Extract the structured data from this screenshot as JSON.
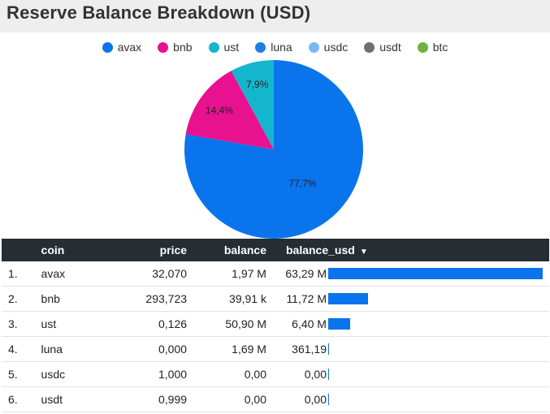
{
  "header": {
    "title": "Reserve Balance Breakdown (USD)"
  },
  "colors": {
    "avax": "#0a74ec",
    "bnb": "#e8118f",
    "ust": "#13b6cc",
    "luna": "#1d7fe0",
    "usdc": "#7cb7f5",
    "usdt": "#6f6f6f",
    "btc": "#6db33f",
    "bar": "#0a74ec",
    "header_bg": "#262d33"
  },
  "legend": [
    "avax",
    "bnb",
    "ust",
    "luna",
    "usdc",
    "usdt",
    "btc"
  ],
  "chart_data": [
    {
      "type": "pie",
      "title": "Reserve Balance Breakdown (USD)",
      "categories": [
        "avax",
        "bnb",
        "ust",
        "luna",
        "usdc",
        "usdt",
        "btc"
      ],
      "values": [
        77.7,
        14.4,
        7.9,
        0.0,
        0.0,
        0.0,
        0.0
      ],
      "labels": [
        "77,7%",
        "14,4%",
        "7,9%",
        "",
        "",
        "",
        ""
      ],
      "legend_position": "top-center"
    },
    {
      "type": "table",
      "columns": [
        "coin",
        "price",
        "balance",
        "balance_usd"
      ],
      "sort_indicator": "▼",
      "rows": [
        {
          "idx": "1.",
          "coin": "avax",
          "price": "32,070",
          "balance": "1,97 M",
          "balance_usd": "63,29 M",
          "usd_value": 63290000
        },
        {
          "idx": "2.",
          "coin": "bnb",
          "price": "293,723",
          "balance": "39,91 k",
          "balance_usd": "11,72 M",
          "usd_value": 11720000
        },
        {
          "idx": "3.",
          "coin": "ust",
          "price": "0,126",
          "balance": "50,90 M",
          "balance_usd": "6,40 M",
          "usd_value": 6400000
        },
        {
          "idx": "4.",
          "coin": "luna",
          "price": "0,000",
          "balance": "1,69 M",
          "balance_usd": "361,19",
          "usd_value": 361.19
        },
        {
          "idx": "5.",
          "coin": "usdc",
          "price": "1,000",
          "balance": "0,00",
          "balance_usd": "0,00",
          "usd_value": 0
        },
        {
          "idx": "6.",
          "coin": "usdt",
          "price": "0,999",
          "balance": "0,00",
          "balance_usd": "0,00",
          "usd_value": 0
        }
      ]
    }
  ]
}
